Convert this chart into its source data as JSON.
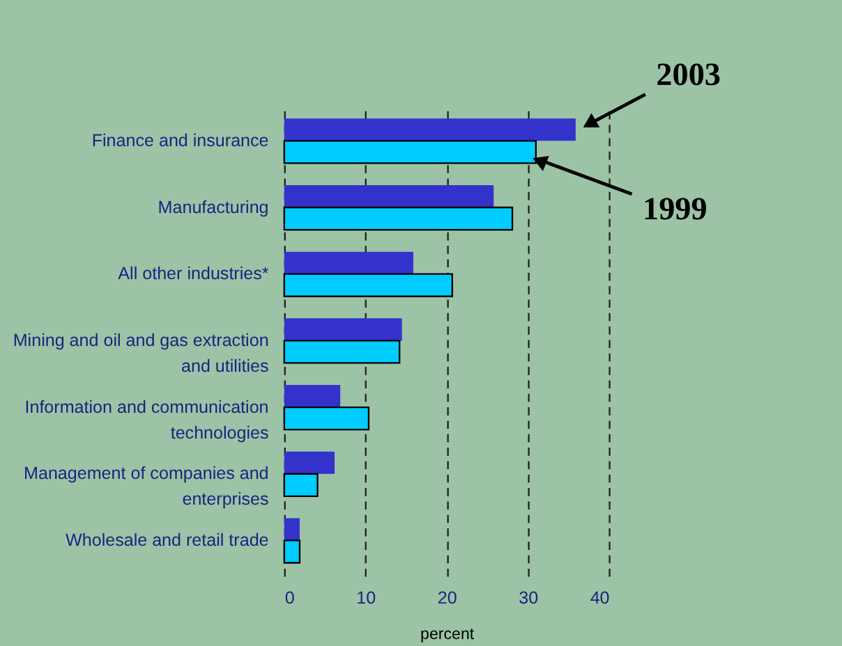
{
  "chart_data": {
    "type": "bar",
    "orientation": "horizontal",
    "xlabel": "percent",
    "categories": [
      "Finance and insurance",
      "Manufacturing",
      "All other industries*",
      "Mining and oil and gas extraction and utilities",
      "Information and communication technologies",
      "Management of companies and enterprises",
      "Wholesale and retail trade"
    ],
    "series": [
      {
        "name": "2003",
        "color": "#3333cc",
        "values": [
          35.9,
          25.8,
          15.9,
          14.5,
          6.9,
          6.2,
          1.9
        ]
      },
      {
        "name": "1999",
        "color": "#00ccff",
        "values": [
          31.0,
          28.1,
          20.7,
          14.2,
          10.4,
          4.1,
          1.9
        ]
      }
    ],
    "xlim": [
      0,
      40
    ],
    "xticks": [
      0,
      10,
      20,
      30,
      40
    ],
    "grid": "x",
    "legend": false
  }
}
